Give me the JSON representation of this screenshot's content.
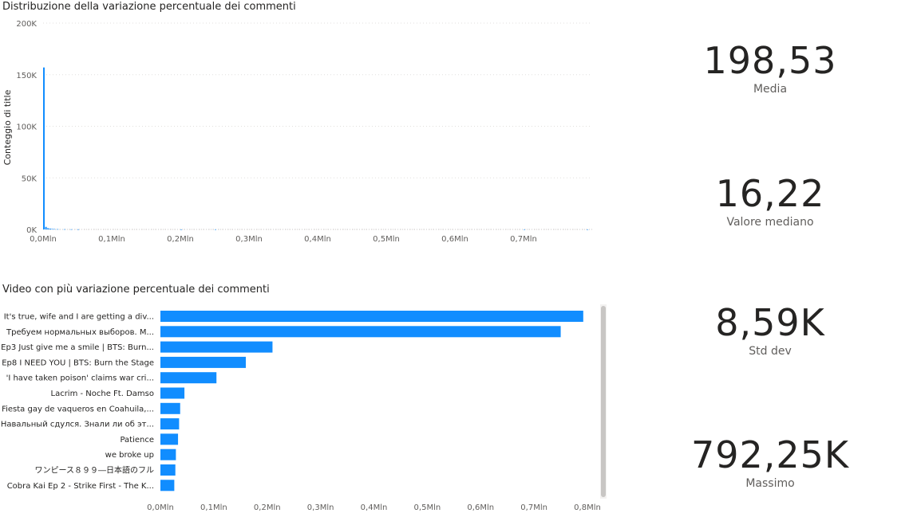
{
  "chart_data": [
    {
      "type": "bar",
      "title": "Distribuzione della variazione percentuale dei commenti",
      "ylabel": "Conteggio di title",
      "xlabel": "",
      "ylim": [
        0,
        200000
      ],
      "y_ticks": [
        "0K",
        "50K",
        "100K",
        "150K",
        "200K"
      ],
      "xlim": [
        0,
        800000
      ],
      "x_ticks": [
        "0,0Mln",
        "0,1Mln",
        "0,2Mln",
        "0,3Mln",
        "0,4Mln",
        "0,5Mln",
        "0,6Mln",
        "0,7Mln"
      ],
      "grid": true,
      "color": "#118DFF",
      "series": [
        {
          "x": [
            0,
            3000,
            6000,
            9000,
            12000,
            15000,
            20000,
            30000,
            40000,
            50000,
            200000,
            250000,
            700000,
            792000
          ],
          "values": [
            157000,
            2500,
            1200,
            800,
            500,
            400,
            300,
            200,
            150,
            100,
            50,
            50,
            50,
            30
          ]
        }
      ]
    },
    {
      "type": "bar",
      "orientation": "horizontal",
      "title": "Video con più variazione percentuale dei commenti",
      "xlim": [
        0,
        800000
      ],
      "x_ticks": [
        "0,0Mln",
        "0,1Mln",
        "0,2Mln",
        "0,3Mln",
        "0,4Mln",
        "0,5Mln",
        "0,6Mln",
        "0,7Mln",
        "0,8Mln"
      ],
      "color": "#118DFF",
      "categories": [
        "It's true, wife and I are getting a div...",
        "Требуем нормальных выборов. М...",
        "Ep3 Just give me a smile | BTS: Burn...",
        "Ep8 I NEED YOU | BTS: Burn the Stage",
        "'I have taken poison' claims war cri...",
        "Lacrim - Noche Ft. Damso",
        "Fiesta gay de vaqueros en Coahuila,...",
        "Навальный сдулся. Знали ли об эт...",
        "Patience",
        "we broke up",
        "ワンピース８９９―日本語のフル",
        "Cobra Kai Ep 2 - Strike First - The K..."
      ],
      "values": [
        792250,
        750000,
        210000,
        160000,
        105000,
        45000,
        37000,
        35000,
        33000,
        29000,
        28000,
        26000
      ]
    }
  ],
  "kpis": [
    {
      "value": "198,53",
      "label": "Media"
    },
    {
      "value": "16,22",
      "label": "Valore mediano"
    },
    {
      "value": "8,59K",
      "label": "Std dev"
    },
    {
      "value": "792,25K",
      "label": "Massimo"
    }
  ]
}
